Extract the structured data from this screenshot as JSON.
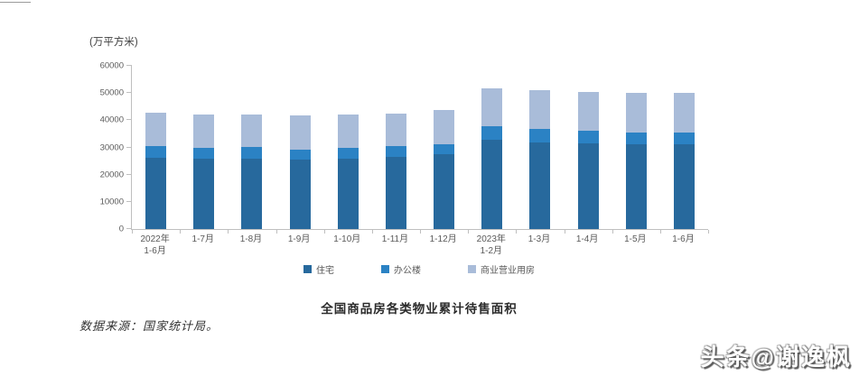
{
  "unit_label": "(万平方米)",
  "chart_data": {
    "type": "bar",
    "variant": "stacked",
    "title": "全国商品房各类物业累计待售面积",
    "ylabel": "万平方米",
    "xlabel": "",
    "ylim": [
      0,
      60000
    ],
    "y_ticks": [
      0,
      10000,
      20000,
      30000,
      40000,
      50000,
      60000
    ],
    "grid": false,
    "legend_position": "bottom",
    "categories": [
      "2022年\n1-6月",
      "1-7月",
      "1-8月",
      "1-9月",
      "1-10月",
      "1-11月",
      "1-12月",
      "2023年\n1-2月",
      "1-3月",
      "1-4月",
      "1-5月",
      "1-6月"
    ],
    "series": [
      {
        "name": "住宅",
        "color": "#27699d",
        "values": [
          26300,
          25900,
          26000,
          25500,
          26000,
          26500,
          27400,
          32700,
          31800,
          31500,
          31000,
          31000
        ]
      },
      {
        "name": "办公楼",
        "color": "#2b82c4",
        "values": [
          4100,
          4000,
          4100,
          3800,
          3900,
          3900,
          3700,
          5000,
          5000,
          4800,
          4500,
          4500
        ]
      },
      {
        "name": "商业营业用房",
        "color": "#a9bcd9",
        "values": [
          12500,
          12200,
          12000,
          12600,
          12200,
          12200,
          12700,
          14100,
          14100,
          14200,
          14600,
          14400
        ]
      }
    ],
    "totals": [
      42900,
      42100,
      42100,
      41900,
      42100,
      42600,
      43800,
      51800,
      50900,
      50500,
      50100,
      49900
    ]
  },
  "source_note": "数据来源：国家统计局。",
  "watermark": "头条@谢逸枫",
  "colors": {
    "axis": "#bfbfbf",
    "tick_label": "#595959",
    "title_text": "#2b2b2b"
  }
}
